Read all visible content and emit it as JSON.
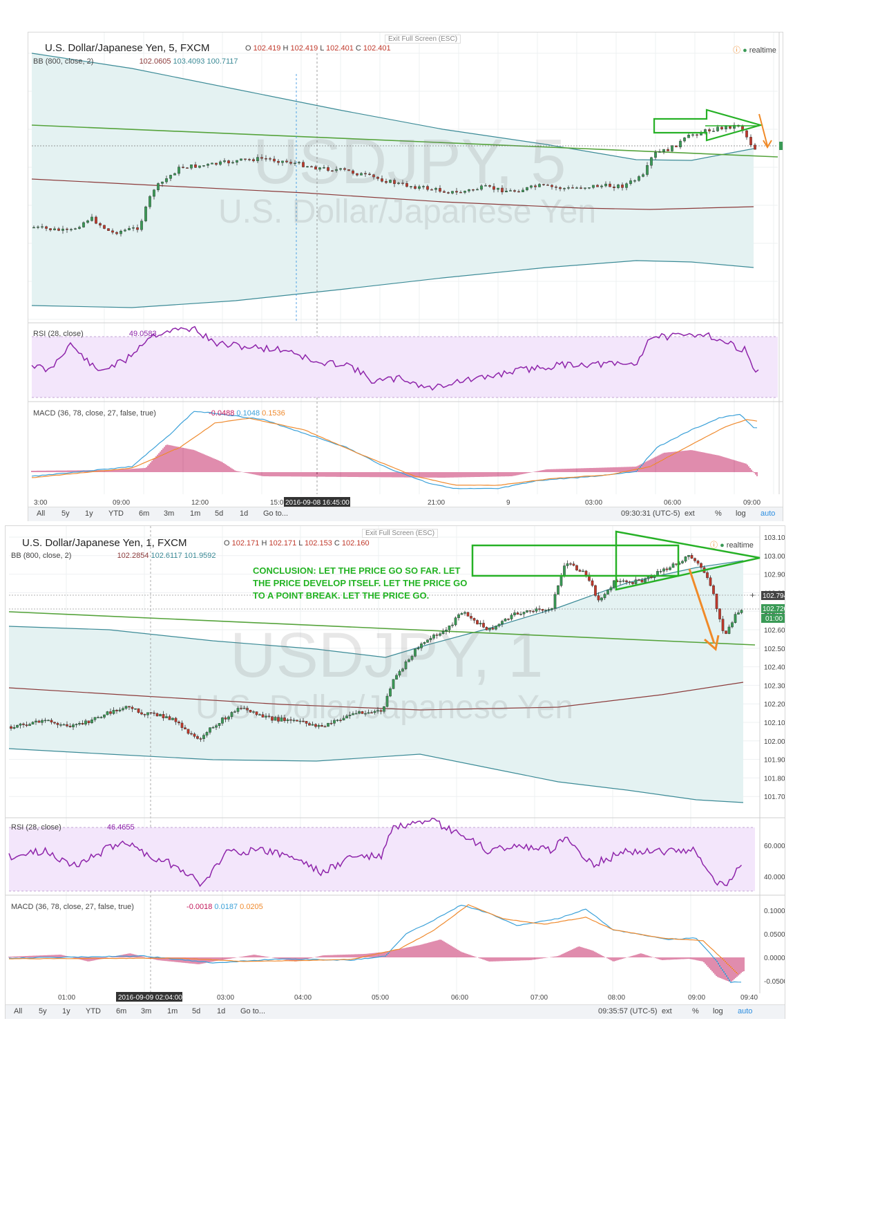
{
  "chart_data": [
    {
      "type": "candlestick",
      "title": "U.S. Dollar/Japanese Yen, 5, FXCM",
      "ohlc": {
        "o": "102.419",
        "h": "102.419",
        "l": "102.401",
        "c": "102.401"
      },
      "indicator_bb": {
        "label": "BB (800, close, 2)",
        "basis": "102.0605",
        "upper": "103.4093",
        "lower": "100.7117"
      },
      "indicator_rsi": {
        "label": "RSI (28, close)",
        "value": "49.0583"
      },
      "indicator_macd": {
        "label": "MACD (36, 78, close, 27, false, true)",
        "hist": "-0.0488",
        "macd": "0.1048",
        "signal": "0.1536"
      },
      "watermark_symbol": "USDJPY, 5",
      "watermark_name": "U.S. Dollar/Japanese Yen",
      "x_ticks": [
        "3:00",
        "09:00",
        "12:00",
        "15:00",
        "2016-09-08 16:45:00",
        "21:00",
        "9",
        "03:00",
        "06:00",
        "09:00"
      ],
      "realtime": "realtime",
      "exit_fullscreen": "Exit Full Screen (ESC)",
      "clock": "09:30:31 (UTC-5)"
    },
    {
      "type": "candlestick",
      "title": "U.S. Dollar/Japanese Yen, 1, FXCM",
      "ohlc": {
        "o": "102.171",
        "h": "102.171",
        "l": "102.153",
        "c": "102.160"
      },
      "indicator_bb": {
        "label": "BB (800, close, 2)",
        "basis": "102.2854",
        "upper": "102.6117",
        "lower": "101.9592"
      },
      "indicator_rsi": {
        "label": "RSI (28, close)",
        "value": "46.4655"
      },
      "indicator_macd": {
        "label": "MACD (36, 78, close, 27, false, true)",
        "hist": "-0.0018",
        "macd": "0.0187",
        "signal": "0.0205"
      },
      "watermark_symbol": "USDJPY, 1",
      "watermark_name": "U.S. Dollar/Japanese Yen",
      "y_ticks": [
        "103.100",
        "103.000",
        "102.900",
        "102.800",
        "102.700",
        "102.600",
        "102.500",
        "102.400",
        "102.300",
        "102.200",
        "102.100",
        "102.000",
        "101.900",
        "101.800",
        "101.700"
      ],
      "price_badges": [
        "102.794",
        "102.720",
        "01:00"
      ],
      "rsi_ticks": [
        "60.0000",
        "40.0000"
      ],
      "macd_ticks": [
        "0.1000",
        "0.0500",
        "0.0000",
        "-0.0500"
      ],
      "x_ticks": [
        "01:00",
        "2016-09-09 02:04:00",
        "03:00",
        "04:00",
        "05:00",
        "06:00",
        "07:00",
        "08:00",
        "09:00",
        "09:40"
      ],
      "realtime": "realtime",
      "exit_fullscreen": "Exit Full Screen (ESC)",
      "clock": "09:35:57 (UTC-5)",
      "annotation": "CONCLUSION: LET THE PRICE GO SO FAR. LET THE PRICE DEVELOP ITSELF. LET THE PRICE GO TO  A POINT BREAK.  LET THE PRICE GO."
    }
  ],
  "toolbar": {
    "ranges": [
      "All",
      "5y",
      "1y",
      "YTD",
      "6m",
      "3m",
      "1m",
      "5d",
      "1d",
      "Go to..."
    ],
    "ext": "ext",
    "pct": "%",
    "log": "log",
    "auto": "auto"
  },
  "colors": {
    "bull": "#3a9a56",
    "bear": "#c0392b",
    "rsi": "#8e24aa",
    "macd": "#3aa0d8",
    "signal": "#ef8a2e",
    "hist": "#c2185b",
    "bb_fill": "#e4f2f2",
    "bb_line": "#3b8a96",
    "basis": "#8b3a3a",
    "trend": "#55a33b",
    "arrow_green": "#26b126",
    "arrow_orange": "#f08a28"
  }
}
